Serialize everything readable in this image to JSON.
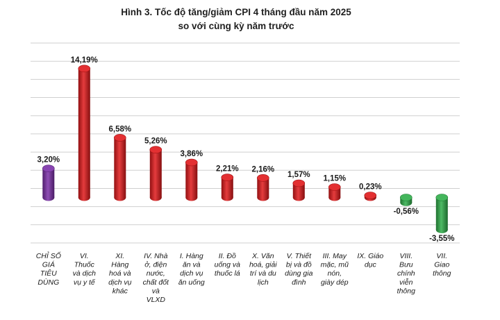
{
  "chart_data": {
    "type": "bar",
    "title_lines": [
      "Hình 3. Tốc độ tăng/giảm CPI 4 tháng đầu năm 2025",
      "so với cùng kỳ năm trước"
    ],
    "categories": [
      [
        "CHỈ SỐ",
        "GIÁ",
        "TIÊU",
        "DÙNG"
      ],
      [
        "VI.",
        "Thuốc",
        "và dịch",
        "vụ y tế"
      ],
      [
        "XI.",
        "Hàng",
        "hoá và",
        "dịch vụ",
        "khác"
      ],
      [
        "IV. Nhà",
        "ở, điện",
        "nước,",
        "chất đốt",
        "và",
        "VLXD"
      ],
      [
        "I. Hàng",
        "ăn và",
        "dịch vụ",
        "ăn uống"
      ],
      [
        "II. Đồ",
        "uống và",
        "thuốc lá"
      ],
      [
        "X. Văn",
        "hoá, giải",
        "trí và du",
        "lịch"
      ],
      [
        "V. Thiết",
        "bị và đồ",
        "dùng gia",
        "đình"
      ],
      [
        "III. May",
        "mặc, mũ",
        "nón,",
        "giày dép"
      ],
      [
        "IX. Giáo",
        "dục"
      ],
      [
        "VIII.",
        "Bưu",
        "chính",
        "viễn",
        "thông"
      ],
      [
        "VII.",
        "Giao",
        "thông"
      ]
    ],
    "values": [
      3.2,
      14.19,
      6.58,
      5.26,
      3.86,
      2.21,
      2.16,
      1.57,
      1.15,
      0.23,
      -0.56,
      -3.55
    ],
    "value_labels": [
      "3,20%",
      "14,19%",
      "6,58%",
      "5,26%",
      "3,86%",
      "2,21%",
      "2,16%",
      "1,57%",
      "1,15%",
      "0,23%",
      "-0,56%",
      "-3,55%"
    ],
    "colors": {
      "total": "#7b2fa8",
      "positive": "#e0191b",
      "negative": "#2fae4a",
      "grid": "#cfcfcf",
      "background": "#ffffff"
    },
    "ylim": [
      -5,
      17
    ],
    "grid": true,
    "legend": false,
    "xlabel": "",
    "ylabel": ""
  }
}
